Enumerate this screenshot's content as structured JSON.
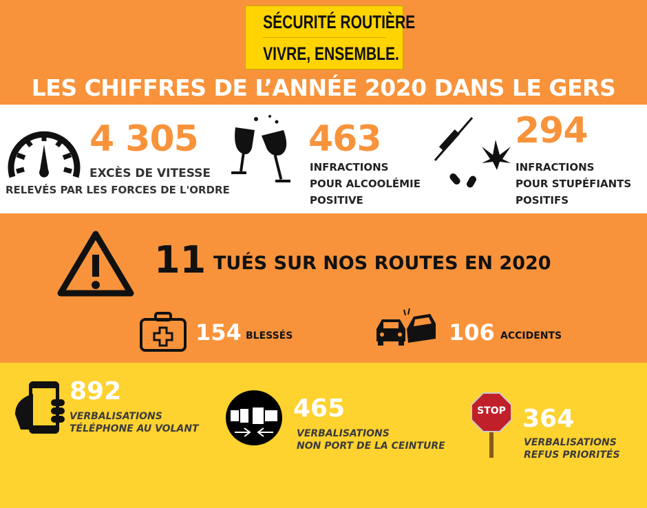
{
  "header": {
    "logo_line1": "SÉCURITÉ ROUTIÈRE",
    "logo_line2": "VIVRE, ENSEMBLE.",
    "title": "LES CHIFFRES DE L’ANNÉE 2020 DANS LE GERS"
  },
  "colors": {
    "orange": "#F8933B",
    "yellow": "#FED22F",
    "logo_yellow": "#FFD400",
    "white": "#FFFFFF",
    "dark": "#111111"
  },
  "infractions": [
    {
      "icon": "speedometer-icon",
      "value": "4 305",
      "line1": "EXCÈS DE VITESSE",
      "line2": "RELEVÉS PAR LES FORCES DE L'ORDRE"
    },
    {
      "icon": "wine-glasses-icon",
      "value": "463",
      "line1": "INFRACTIONS",
      "line2": "POUR ALCOOLÉMIE",
      "line3": "POSITIVE"
    },
    {
      "icon": "drugs-icon",
      "value": "294",
      "line1": "INFRACTIONS",
      "line2": "POUR STUPÉFIANTS",
      "line3": "POSITIFS"
    }
  ],
  "casualties": {
    "deaths": {
      "icon": "warning-icon",
      "value": "11",
      "label": "TUÉS SUR NOS ROUTES EN 2020"
    },
    "injured": {
      "icon": "first-aid-kit-icon",
      "value": "154",
      "label": "BLESSÉS"
    },
    "accidents": {
      "icon": "car-crash-icon",
      "value": "106",
      "label": "ACCIDENTS"
    }
  },
  "verbalisations": [
    {
      "icon": "phone-in-hand-icon",
      "value": "892",
      "line1": "VERBALISATIONS",
      "line2": "TÉLÉPHONE AU VOLANT"
    },
    {
      "icon": "seatbelt-icon",
      "value": "465",
      "line1": "VERBALISATIONS",
      "line2": "NON PORT DE LA CEINTURE"
    },
    {
      "icon": "stop-sign-icon",
      "value": "364",
      "line1": "VERBALISATIONS",
      "line2": "REFUS PRIORITÉS",
      "sign_text": "STOP"
    }
  ]
}
